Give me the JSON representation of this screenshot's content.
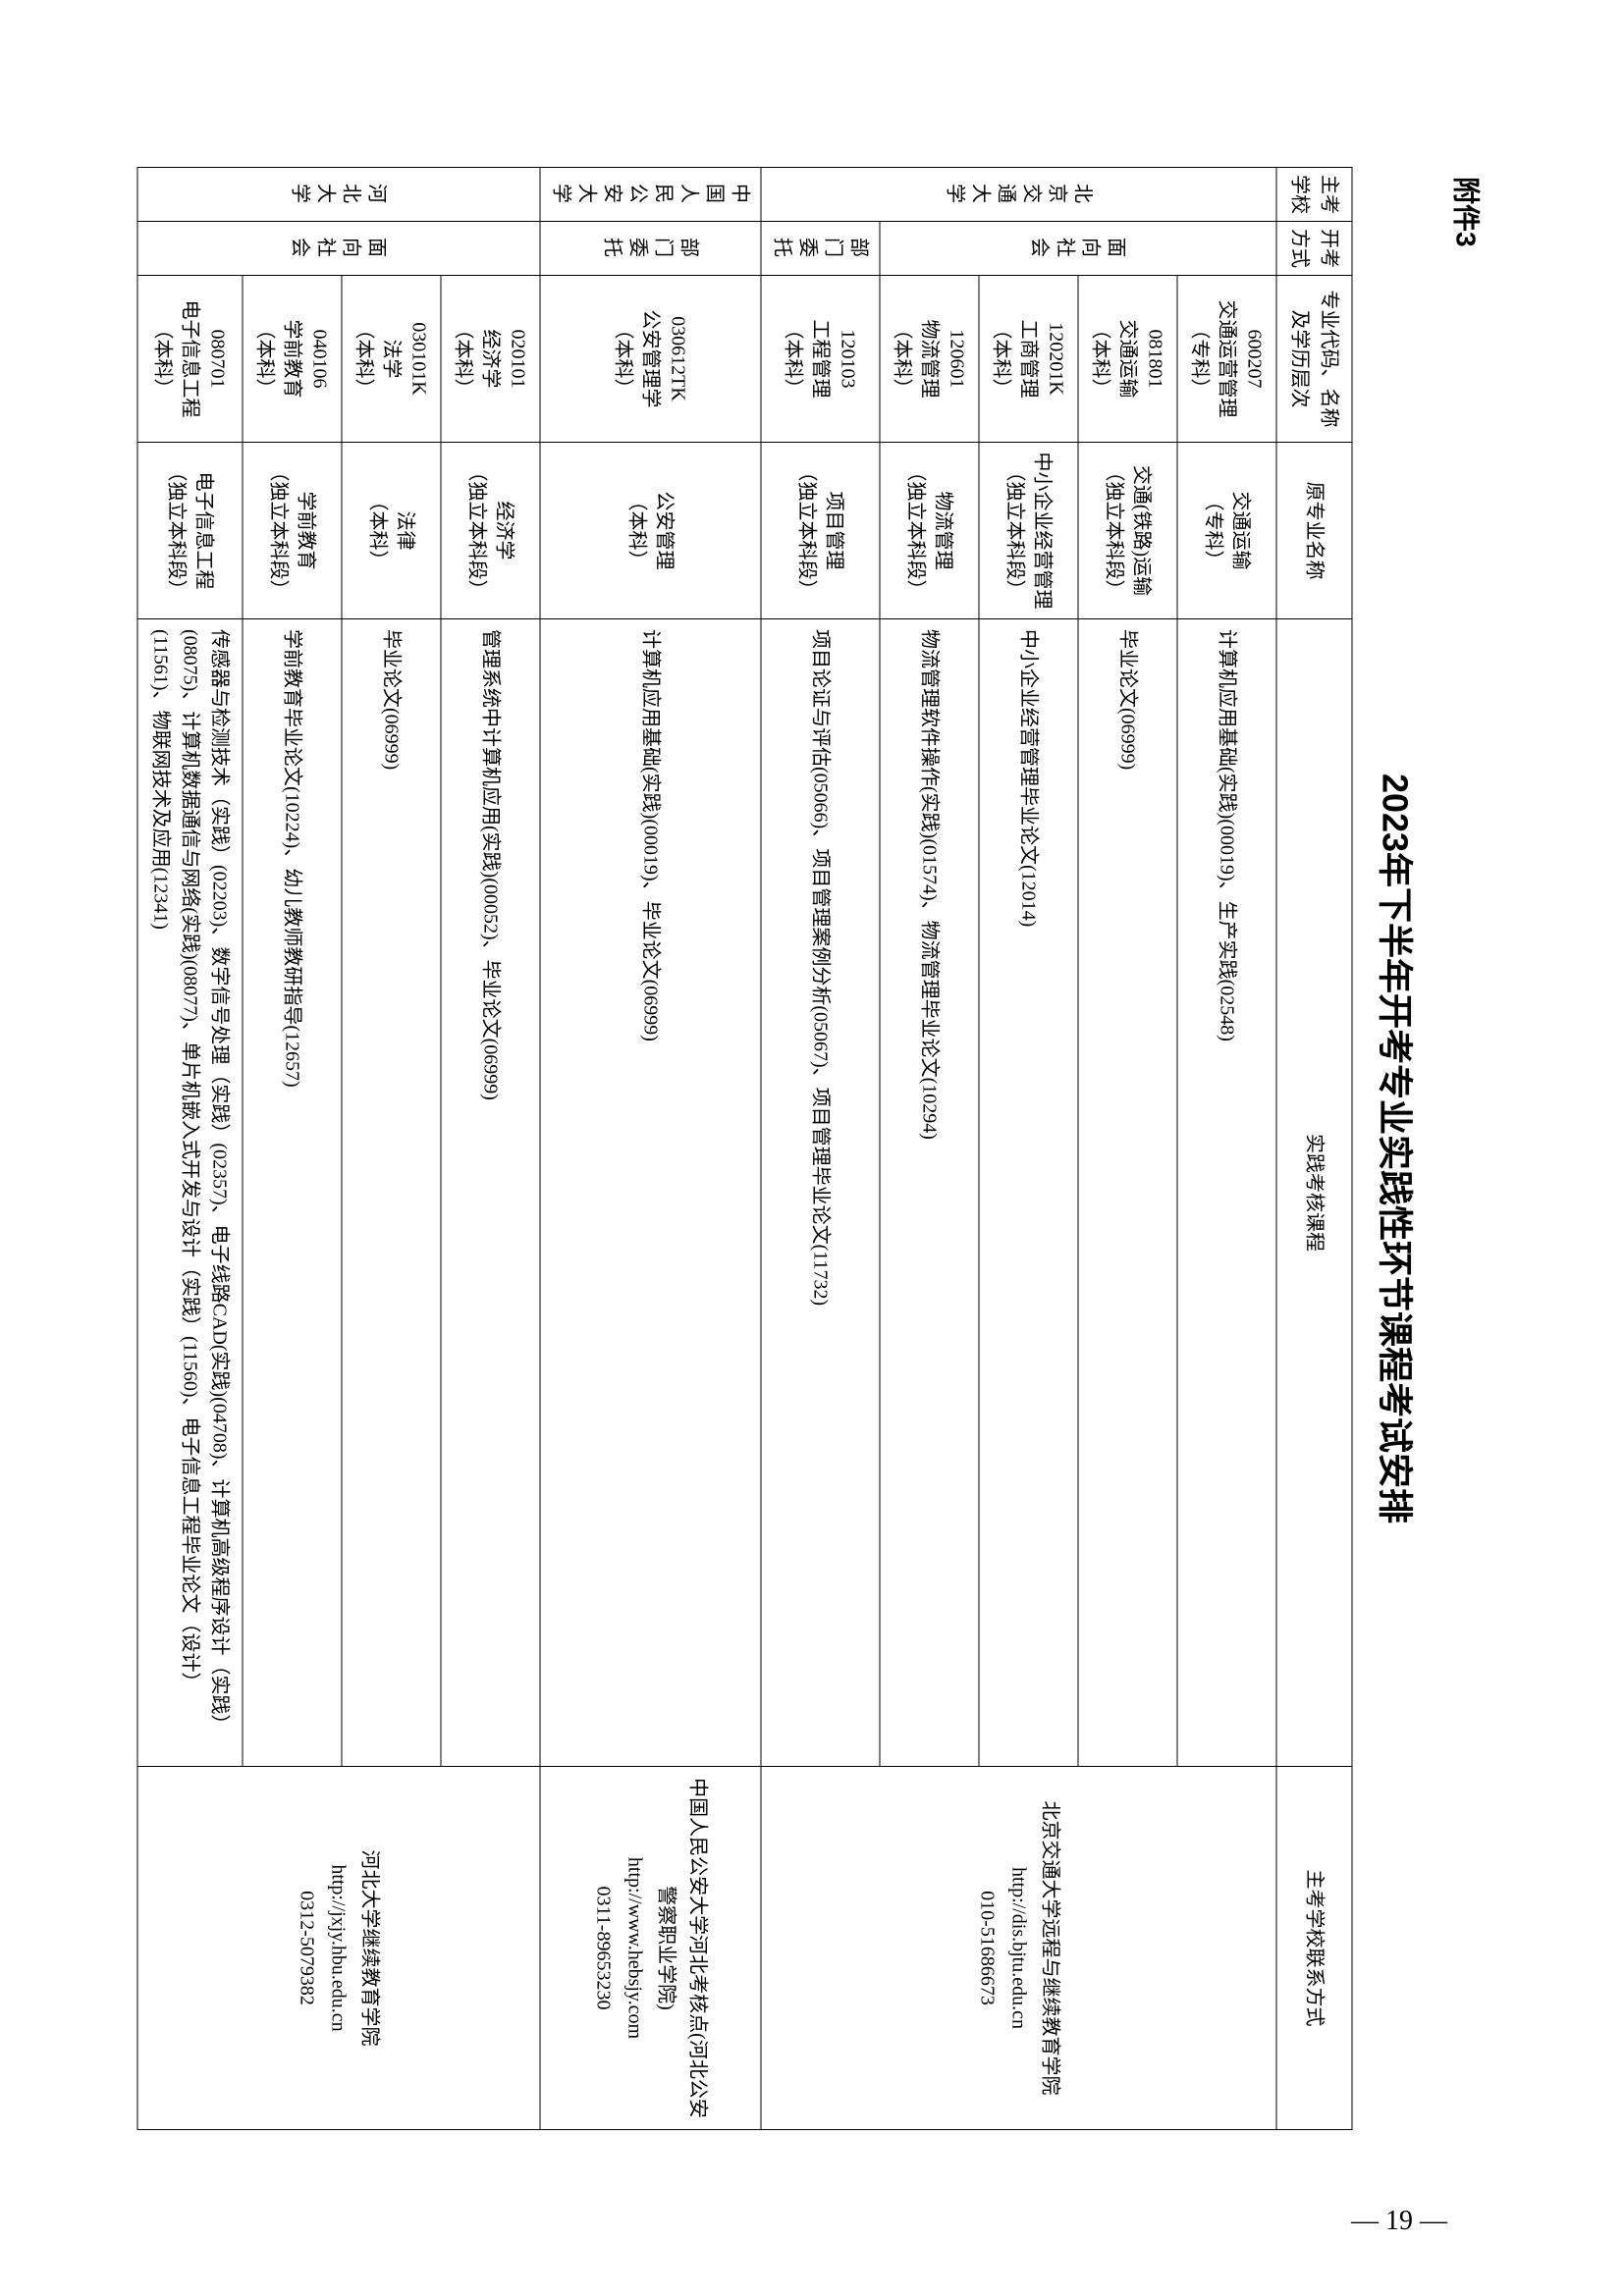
{
  "attachment": "附件3",
  "title": "2023年下半年开考专业实践性环节课程考试安排",
  "pageNumber": "— 19 —",
  "headers": {
    "school": "主考学校",
    "method": "开考方式",
    "major": "专业代码、名称及学历层次",
    "oldName": "原专业名称",
    "courses": "实践考核课程",
    "contact": "主考学校联系方式"
  },
  "schools": {
    "bjtu": {
      "name": "北京交通大学",
      "method": "面向社会",
      "contact": "北京交通大学远程与继续教育学院\nhttp://dis.bjtu.edu.cn\n010-51686673",
      "rows": [
        {
          "major": "600207\n交通运营管理\n（专科）",
          "oldName": "交通运输\n（专科）",
          "courses": "计算机应用基础(实践)(00019)、生产实践(02548)"
        },
        {
          "major": "081801\n交通运输\n（本科）",
          "oldName": "交通(铁路)运输\n（独立本科段）",
          "courses": "毕业论文(06999)"
        },
        {
          "major": "120201K\n工商管理\n（本科）",
          "oldName": "中小企业经营管理\n（独立本科段）",
          "courses": "中小企业经营管理毕业论文(12014)"
        },
        {
          "major": "120601\n物流管理\n（本科）",
          "oldName": "物流管理\n（独立本科段）",
          "courses": "物流管理软件操作(实践)(01574)、物流管理毕业论文(10294)"
        },
        {
          "major": "120103\n工程管理\n（本科）",
          "oldName": "项目管理\n（独立本科段）",
          "courses": "项目论证与评估(05066)、项目管理案例分析(05067)、项目管理毕业论文(11732)",
          "method": "部门委托"
        }
      ]
    },
    "ppsu": {
      "name": "中国人民公安大学",
      "method": "部门委托",
      "contact": "中国人民公安大学河北考核点(河北公安警察职业学院)\nhttp://www.hebsjy.com\n0311-89653230",
      "rows": [
        {
          "major": "030612TK\n公安管理学\n（本科）",
          "oldName": "公安管理\n（本科）",
          "courses": "计算机应用基础(实践)(00019)、毕业论文(06999)"
        }
      ]
    },
    "hbu": {
      "name": "河北大学",
      "method": "面向社会",
      "contact": "河北大学继续教育学院\nhttp://jxjy.hbu.edu.cn\n0312-5079382",
      "rows": [
        {
          "major": "020101\n经济学\n（本科）",
          "oldName": "经济学\n（独立本科段）",
          "courses": "管理系统中计算机应用(实践)(00052)、毕业论文(06999)"
        },
        {
          "major": "030101K\n法学\n（本科）",
          "oldName": "法律\n（本科）",
          "courses": "毕业论文(06999)"
        },
        {
          "major": "040106\n学前教育\n（本科）",
          "oldName": "学前教育\n（独立本科段）",
          "courses": "学前教育毕业论文(10224)、幼儿教师教研指导(12657)"
        },
        {
          "major": "080701\n电子信息工程\n（本科）",
          "oldName": "电子信息工程\n（独立本科段）",
          "courses": "传感器与检测技术（实践）(02203)、数字信号处理（实践）(02357)、电子线路CAD(实践)(04708)、计算机高级程序设计（实践）(08075)、计算机数据通信与网络(实践)(08077)、单片机嵌入式开发与设计（实践）(11560)、电子信息工程毕业论文（设计）(11561)、物联网技术及应用(12341)"
        }
      ]
    }
  }
}
